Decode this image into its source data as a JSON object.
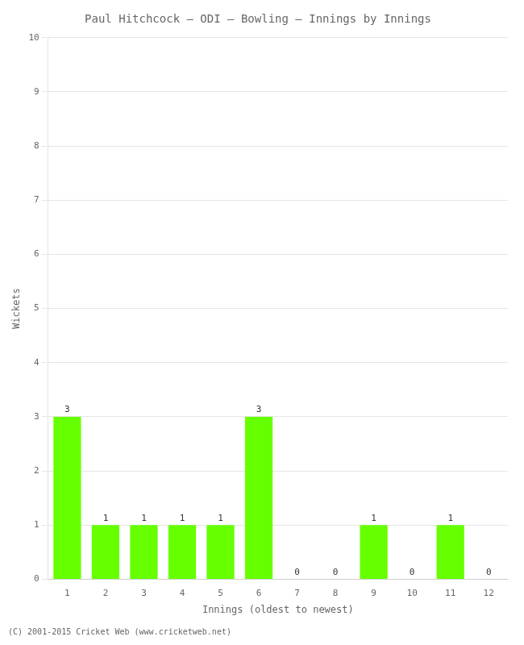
{
  "chart_data": {
    "type": "bar",
    "title": "Paul Hitchcock – ODI – Bowling – Innings by Innings",
    "xlabel": "Innings (oldest to newest)",
    "ylabel": "Wickets",
    "footer": "(C) 2001-2015 Cricket Web (www.cricketweb.net)",
    "categories": [
      "1",
      "2",
      "3",
      "4",
      "5",
      "6",
      "7",
      "8",
      "9",
      "10",
      "11",
      "12"
    ],
    "values": [
      3,
      1,
      1,
      1,
      1,
      3,
      0,
      0,
      1,
      0,
      1,
      0
    ],
    "color": "#66ff00",
    "ylim": [
      0,
      10
    ],
    "yticks": [
      0,
      1,
      2,
      3,
      4,
      5,
      6,
      7,
      8,
      9,
      10
    ],
    "grid": true,
    "data_labels": true
  }
}
